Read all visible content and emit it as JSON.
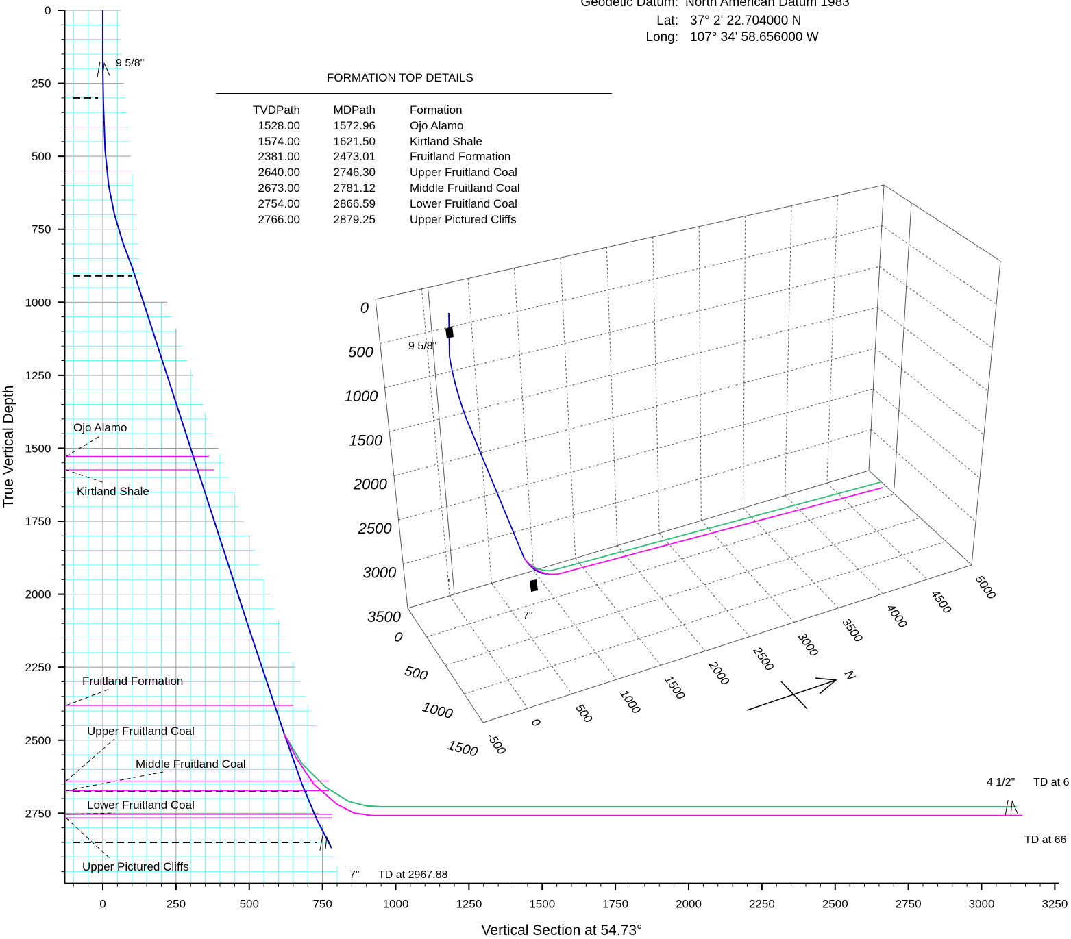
{
  "header": {
    "datum_label": "Geodetic Datum:",
    "datum_value": "North American Datum 1983",
    "lat_label": "Lat:",
    "lat_value": "37° 2' 22.704000 N",
    "long_label": "Long:",
    "long_value": "107° 34' 58.656000 W"
  },
  "formation_table": {
    "title": "FORMATION TOP DETAILS",
    "columns": [
      "TVDPath",
      "MDPath",
      "Formation"
    ],
    "rows": [
      [
        "1528.00",
        "1572.96",
        "Ojo Alamo"
      ],
      [
        "1574.00",
        "1621.50",
        "Kirtland Shale"
      ],
      [
        "2381.00",
        "2473.01",
        "Fruitland Formation"
      ],
      [
        "2640.00",
        "2746.30",
        "Upper Fruitland Coal"
      ],
      [
        "2673.00",
        "2781.12",
        "Middle Fruitland Coal"
      ],
      [
        "2754.00",
        "2866.59",
        "Lower Fruitland Coal"
      ],
      [
        "2766.00",
        "2879.25",
        "Upper Pictured Cliffs"
      ]
    ]
  },
  "colors": {
    "wellpath": "#0000cc",
    "lateral_a": "#33bb77",
    "lateral_b": "#ee11ee",
    "grid_minor": "#66ffff",
    "grid_major": "#999999"
  },
  "chart_data": [
    {
      "type": "line",
      "xlabel": "Vertical Section at 54.73°",
      "ylabel": "True Vertical Depth",
      "xlim": [
        -130,
        3250
      ],
      "ylim": [
        2990,
        0
      ],
      "x_ticks": [
        0,
        250,
        500,
        750,
        1000,
        1250,
        1500,
        1750,
        2000,
        2250,
        2500,
        2750,
        3000,
        3250
      ],
      "y_ticks": [
        0,
        250,
        500,
        750,
        1000,
        1250,
        1500,
        1750,
        2000,
        2250,
        2500,
        2750
      ],
      "grid": true,
      "series": [
        {
          "color": "#0000cc",
          "x": [
            0,
            0,
            2,
            8,
            20,
            40,
            70,
            100,
            300,
            500,
            600,
            620,
            680,
            730,
            780
          ],
          "y": [
            0,
            200,
            320,
            480,
            600,
            700,
            800,
            880,
            1500,
            2120,
            2420,
            2480,
            2650,
            2770,
            2868
          ]
        },
        {
          "color": "#33bb77",
          "x": [
            620,
            680,
            760,
            840,
            900,
            950,
            3120
          ],
          "y": [
            2480,
            2580,
            2660,
            2710,
            2725,
            2728,
            2728
          ]
        },
        {
          "color": "#ee11ee",
          "x": [
            620,
            660,
            720,
            800,
            860,
            920,
            3140
          ],
          "y": [
            2480,
            2560,
            2650,
            2720,
            2750,
            2758,
            2758
          ]
        }
      ],
      "formation_tops": [
        {
          "name": "Ojo Alamo",
          "tvd": 1528
        },
        {
          "name": "Kirtland Shale",
          "tvd": 1574
        },
        {
          "name": "Fruitland Formation",
          "tvd": 2381
        },
        {
          "name": "Upper Fruitland Coal",
          "tvd": 2640
        },
        {
          "name": "Middle Fruitland Coal",
          "tvd": 2673
        },
        {
          "name": "Lower Fruitland Coal",
          "tvd": 2754
        },
        {
          "name": "Upper Pictured Cliffs",
          "tvd": 2766
        }
      ],
      "dashed_markers_tvd": [
        300,
        910,
        2675,
        2850
      ],
      "casing_points": [
        {
          "label": "9 5/8\"",
          "vs": 0,
          "tvd": 200
        },
        {
          "label": "7\"",
          "vs": 760,
          "tvd": 2850
        },
        {
          "label": "4 1/2\"",
          "vs": 3100,
          "tvd": 2728
        }
      ],
      "annotations": [
        "TD at 2967.88",
        "TD at 66",
        "TD at 6"
      ]
    },
    {
      "type": "line",
      "subtype": "3d",
      "vertical_ticks": [
        0,
        500,
        1000,
        1500,
        2000,
        2500,
        3000,
        3500
      ],
      "axis_a_ticks": [
        -500,
        0,
        500,
        1000,
        1500,
        2000,
        2500,
        3000,
        3500,
        4000,
        4500,
        5000
      ],
      "axis_b_ticks": [
        0,
        500,
        1000,
        1500
      ],
      "north_label": "N",
      "casing_labels": [
        "9 5/8\"",
        "7\""
      ]
    }
  ]
}
